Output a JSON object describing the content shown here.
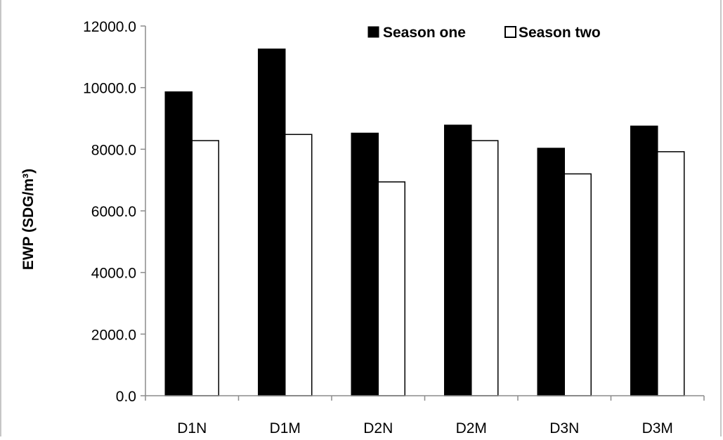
{
  "chart_data": {
    "type": "bar",
    "categories": [
      "D1N",
      "D1M",
      "D2N",
      "D2M",
      "D3N",
      "D3M"
    ],
    "series": [
      {
        "name": "Season one",
        "color": "#000000",
        "values": [
          9860,
          11250,
          8520,
          8780,
          8030,
          8750
        ]
      },
      {
        "name": "Season two",
        "color": "#ffffff",
        "values": [
          8280,
          8480,
          6940,
          8280,
          7200,
          7920
        ]
      }
    ],
    "ylabel": "EWP (SDG/m³)",
    "ylim": [
      0,
      12000
    ],
    "yticks": [
      "0.0",
      "2000.0",
      "4000.0",
      "6000.0",
      "8000.0",
      "10000.0",
      "12000.0"
    ],
    "grid": false,
    "legend_position": "top-right"
  }
}
